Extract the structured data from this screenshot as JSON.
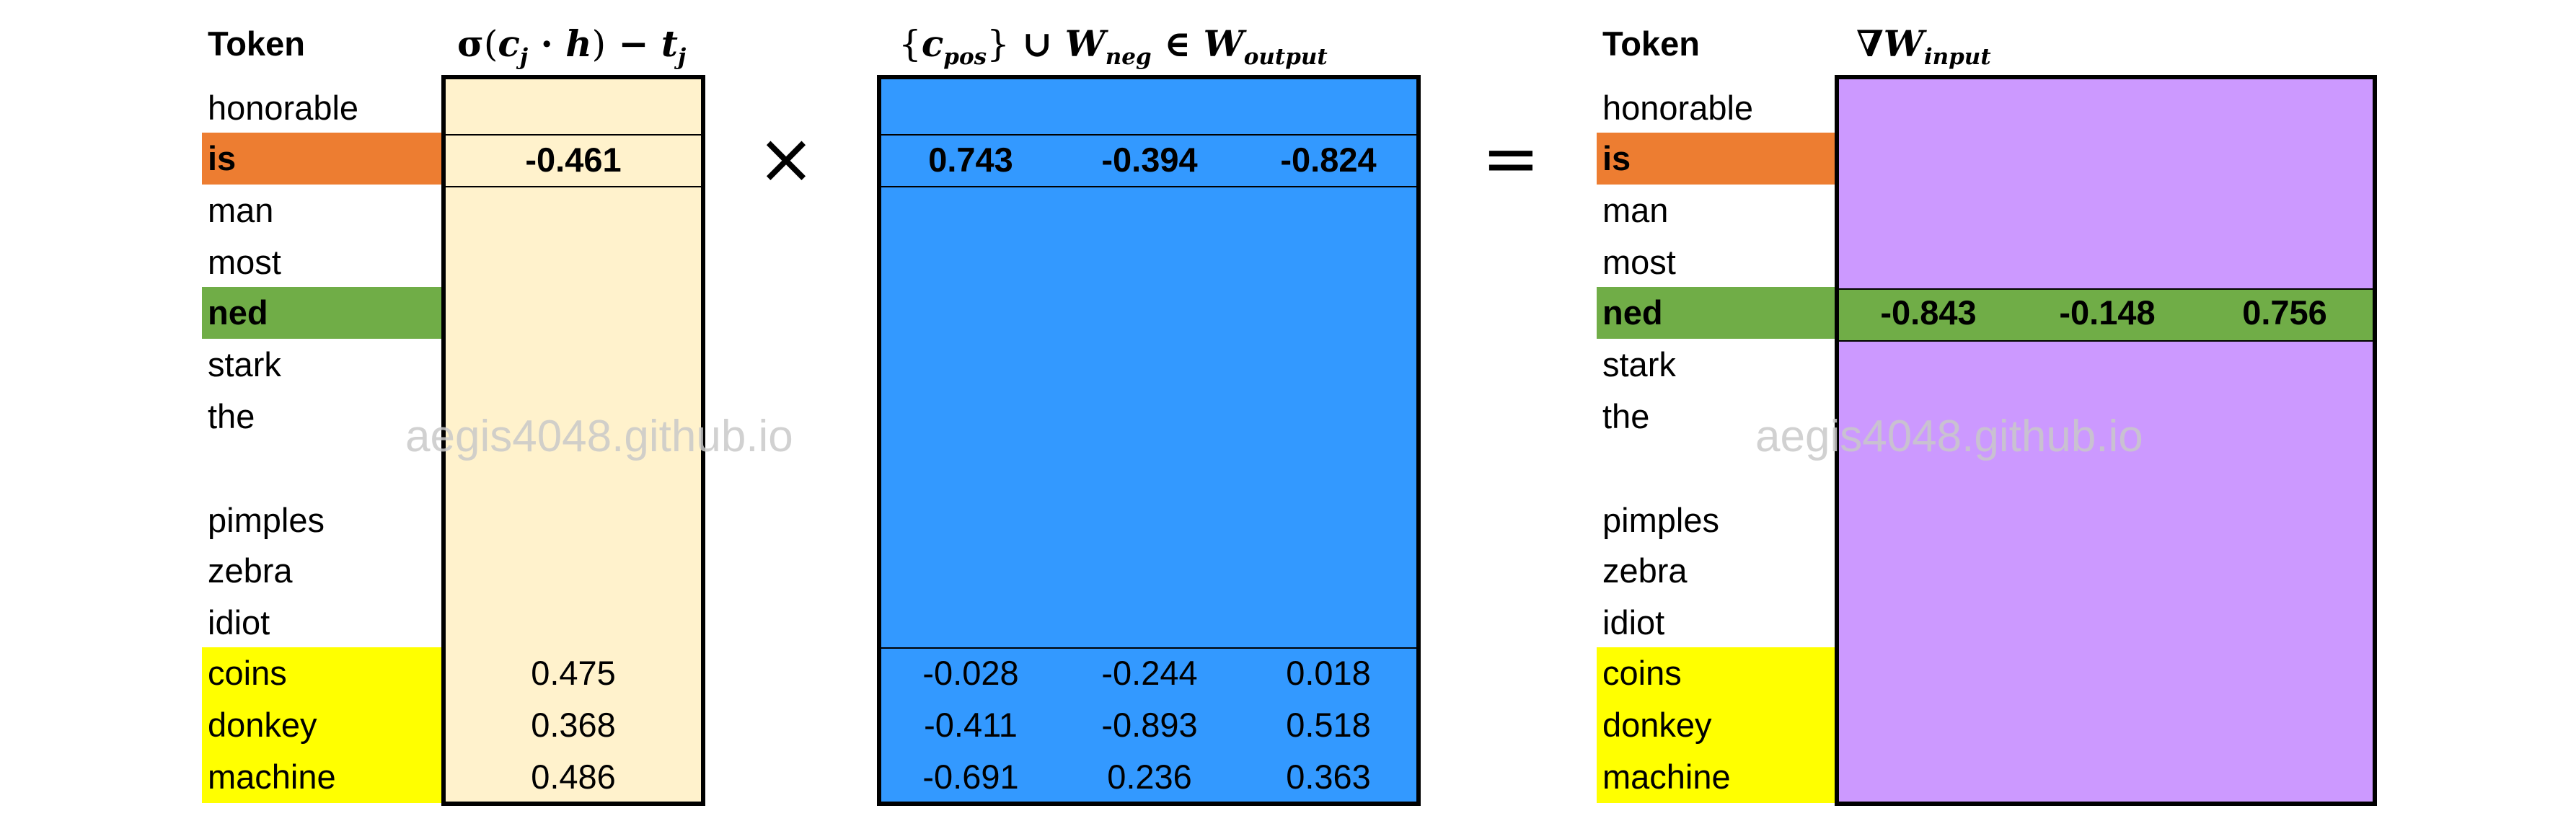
{
  "headers": {
    "token_left": "Token",
    "token_right": "Token"
  },
  "tokens": [
    "honorable",
    "is",
    "man",
    "most",
    "ned",
    "stark",
    "the",
    "",
    "pimples",
    "zebra",
    "idiot",
    "coins",
    "donkey",
    "machine"
  ],
  "scores": {
    "is": "-0.461",
    "coins": "0.475",
    "donkey": "0.368",
    "machine": "0.486"
  },
  "output_rows": {
    "is": [
      "0.743",
      "-0.394",
      "-0.824"
    ],
    "coins": [
      "-0.028",
      "-0.244",
      "0.018"
    ],
    "donkey": [
      "-0.411",
      "-0.893",
      "0.518"
    ],
    "machine": [
      "-0.691",
      "0.236",
      "0.363"
    ]
  },
  "gradient_row": {
    "ned": [
      "-0.843",
      "-0.148",
      "0.756"
    ]
  },
  "operators": {
    "times": "×",
    "equals": "="
  },
  "watermark": "aegis4048.github.io",
  "colors": {
    "orange": "#ED7D31",
    "green": "#70AD47",
    "yellow": "#FFFF00",
    "cream": "#FFF2CC",
    "blue": "#3399FF",
    "purple": "#CC99FF"
  }
}
